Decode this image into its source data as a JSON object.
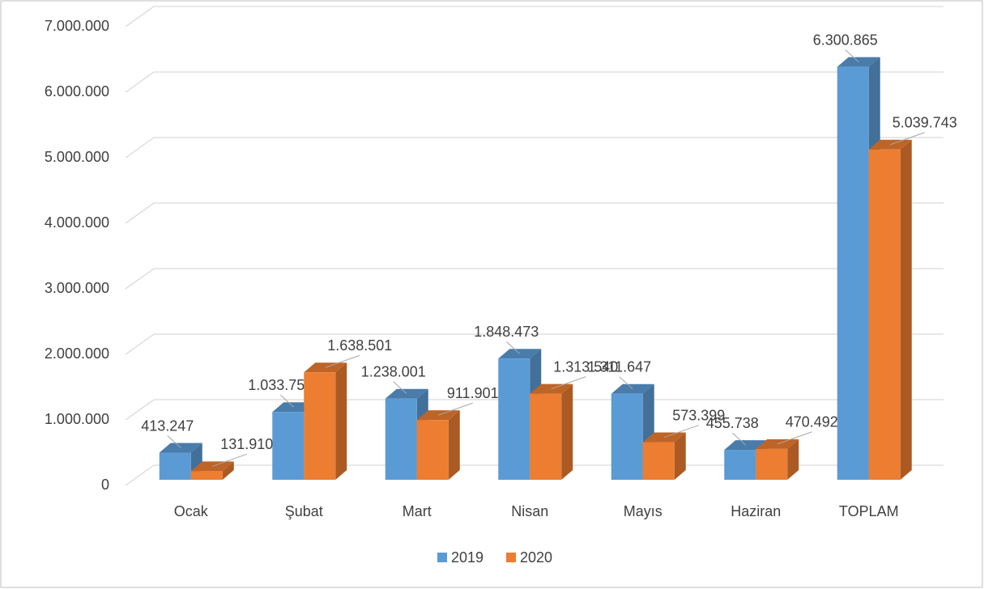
{
  "chart_data": {
    "type": "bar3d",
    "categories": [
      "Ocak",
      "Şubat",
      "Mart",
      "Nisan",
      "Mayıs",
      "Haziran",
      "TOPLAM"
    ],
    "series": [
      {
        "name": "2019",
        "color": "#5b9bd5",
        "values": [
          413247,
          1033759,
          1238001,
          1848473,
          1311647,
          455738,
          6300865
        ],
        "value_labels": [
          "413.247",
          "1.033.759",
          "1.238.001",
          "1.848.473",
          "1.311.647",
          "455.738",
          "6.300.865"
        ]
      },
      {
        "name": "2020",
        "color": "#ed7d31",
        "values": [
          131910,
          1638501,
          911901,
          1313540,
          573399,
          470492,
          5039743
        ],
        "value_labels": [
          "131.910",
          "1.638.501",
          "911.901",
          "1.313.540",
          "573.399",
          "470.492",
          "5.039.743"
        ]
      }
    ],
    "ylim": [
      0,
      7000000
    ],
    "yticks": [
      0,
      {
        "value": 1000000,
        "label": "1.000.000"
      },
      {
        "value": 2000000,
        "label": "2.000.000"
      },
      {
        "value": 3000000,
        "label": "3.000.000"
      },
      {
        "value": 4000000,
        "label": "4.000.000"
      },
      {
        "value": 5000000,
        "label": "5.000.000"
      },
      {
        "value": 6000000,
        "label": "6.000.000"
      },
      {
        "value": 7000000,
        "label": "7.000.000"
      }
    ],
    "grid": true,
    "legend": "bottom"
  }
}
